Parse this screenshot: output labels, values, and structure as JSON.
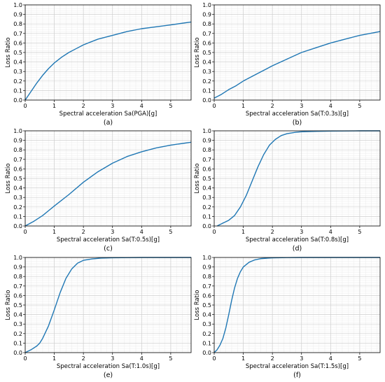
{
  "chart_data": [
    {
      "type": "line",
      "panel_label": "(a)",
      "xlabel": "Spectral acceleration Sa(PGA)[g]",
      "ylabel": "Loss Ratio",
      "xlim": [
        0,
        5.7
      ],
      "ylim": [
        0,
        1.0
      ],
      "xticks": [
        0,
        1,
        2,
        3,
        4,
        5
      ],
      "yticks": [
        0.0,
        0.1,
        0.2,
        0.3,
        0.4,
        0.5,
        0.6,
        0.7,
        0.8,
        0.9,
        1.0
      ],
      "grid": true,
      "series": [
        {
          "color": "#1f77b4",
          "x": [
            0,
            0.2,
            0.4,
            0.6,
            0.8,
            1.0,
            1.25,
            1.5,
            1.75,
            2.0,
            2.5,
            3.0,
            3.5,
            4.0,
            4.5,
            5.0,
            5.7
          ],
          "y": [
            0.0,
            0.09,
            0.18,
            0.26,
            0.33,
            0.39,
            0.45,
            0.5,
            0.54,
            0.58,
            0.64,
            0.68,
            0.72,
            0.75,
            0.77,
            0.79,
            0.82
          ]
        }
      ]
    },
    {
      "type": "line",
      "panel_label": "(b)",
      "xlabel": "Spectral acceleration Sa(T:0.3s)[g]",
      "ylabel": "Loss Ratio",
      "xlim": [
        0,
        5.7
      ],
      "ylim": [
        0,
        1.0
      ],
      "xticks": [
        0,
        1,
        2,
        3,
        4,
        5
      ],
      "yticks": [
        0.0,
        0.1,
        0.2,
        0.3,
        0.4,
        0.5,
        0.6,
        0.7,
        0.8,
        0.9,
        1.0
      ],
      "grid": true,
      "series": [
        {
          "color": "#1f77b4",
          "x": [
            0,
            0.25,
            0.5,
            0.75,
            1.0,
            1.5,
            2.0,
            2.5,
            3.0,
            3.5,
            4.0,
            4.5,
            5.0,
            5.7
          ],
          "y": [
            0.02,
            0.06,
            0.11,
            0.15,
            0.2,
            0.28,
            0.36,
            0.43,
            0.5,
            0.55,
            0.6,
            0.64,
            0.68,
            0.72
          ]
        }
      ]
    },
    {
      "type": "line",
      "panel_label": "(c)",
      "xlabel": "Spectral acceleration Sa(T:0.5s)[g]",
      "ylabel": "Loss Ratio",
      "xlim": [
        0,
        5.7
      ],
      "ylim": [
        0,
        1.0
      ],
      "xticks": [
        0,
        1,
        2,
        3,
        4,
        5
      ],
      "yticks": [
        0.0,
        0.1,
        0.2,
        0.3,
        0.4,
        0.5,
        0.6,
        0.7,
        0.8,
        0.9,
        1.0
      ],
      "grid": true,
      "series": [
        {
          "color": "#1f77b4",
          "x": [
            0,
            0.3,
            0.6,
            0.8,
            1.0,
            1.5,
            2.0,
            2.5,
            3.0,
            3.5,
            4.0,
            4.5,
            5.0,
            5.7
          ],
          "y": [
            0.0,
            0.05,
            0.11,
            0.16,
            0.21,
            0.33,
            0.46,
            0.57,
            0.66,
            0.73,
            0.78,
            0.82,
            0.85,
            0.88
          ]
        }
      ]
    },
    {
      "type": "line",
      "panel_label": "(d)",
      "xlabel": "Spectral acceleration Sa(T:0.8s)[g]",
      "ylabel": "Loss Ratio",
      "xlim": [
        0,
        5.7
      ],
      "ylim": [
        0,
        1.0
      ],
      "xticks": [
        0,
        1,
        2,
        3,
        4,
        5
      ],
      "yticks": [
        0.0,
        0.1,
        0.2,
        0.3,
        0.4,
        0.5,
        0.6,
        0.7,
        0.8,
        0.9,
        1.0
      ],
      "grid": true,
      "series": [
        {
          "color": "#1f77b4",
          "x": [
            0.1,
            0.3,
            0.5,
            0.7,
            0.9,
            1.1,
            1.3,
            1.5,
            1.7,
            1.9,
            2.1,
            2.3,
            2.5,
            2.8,
            3.0,
            3.5,
            4.0,
            5.0,
            5.7
          ],
          "y": [
            0.0,
            0.03,
            0.06,
            0.11,
            0.2,
            0.32,
            0.47,
            0.62,
            0.75,
            0.85,
            0.91,
            0.95,
            0.97,
            0.985,
            0.99,
            0.995,
            0.998,
            1.0,
            1.0
          ]
        }
      ]
    },
    {
      "type": "line",
      "panel_label": "(e)",
      "xlabel": "Spectral acceleration Sa(T:1.0s)[g]",
      "ylabel": "Loss Ratio",
      "xlim": [
        0,
        5.7
      ],
      "ylim": [
        0,
        1.0
      ],
      "xticks": [
        0,
        1,
        2,
        3,
        4,
        5
      ],
      "yticks": [
        0.0,
        0.1,
        0.2,
        0.3,
        0.4,
        0.5,
        0.6,
        0.7,
        0.8,
        0.9,
        1.0
      ],
      "grid": true,
      "series": [
        {
          "color": "#1f77b4",
          "x": [
            0,
            0.2,
            0.4,
            0.5,
            0.6,
            0.8,
            1.0,
            1.2,
            1.4,
            1.6,
            1.8,
            2.0,
            2.3,
            2.6,
            3.0,
            4.0,
            5.0,
            5.7
          ],
          "y": [
            0.0,
            0.03,
            0.07,
            0.1,
            0.15,
            0.28,
            0.45,
            0.63,
            0.78,
            0.88,
            0.94,
            0.97,
            0.985,
            0.993,
            0.997,
            1.0,
            1.0,
            1.0
          ]
        }
      ]
    },
    {
      "type": "line",
      "panel_label": "(f)",
      "xlabel": "Spectral acceleration Sa(T:1.5s)[g]",
      "ylabel": "Loss Ratio",
      "xlim": [
        0,
        5.7
      ],
      "ylim": [
        0,
        1.0
      ],
      "xticks": [
        0,
        1,
        2,
        3,
        4,
        5
      ],
      "yticks": [
        0.0,
        0.1,
        0.2,
        0.3,
        0.4,
        0.5,
        0.6,
        0.7,
        0.8,
        0.9,
        1.0
      ],
      "grid": true,
      "series": [
        {
          "color": "#1f77b4",
          "x": [
            0,
            0.1,
            0.2,
            0.3,
            0.4,
            0.5,
            0.6,
            0.7,
            0.8,
            0.9,
            1.0,
            1.2,
            1.4,
            1.6,
            2.0,
            2.5,
            3.0,
            4.0,
            5.7
          ],
          "y": [
            0.0,
            0.03,
            0.08,
            0.15,
            0.26,
            0.4,
            0.55,
            0.68,
            0.78,
            0.85,
            0.9,
            0.95,
            0.975,
            0.988,
            0.996,
            0.999,
            1.0,
            1.0,
            1.0
          ]
        }
      ]
    }
  ]
}
